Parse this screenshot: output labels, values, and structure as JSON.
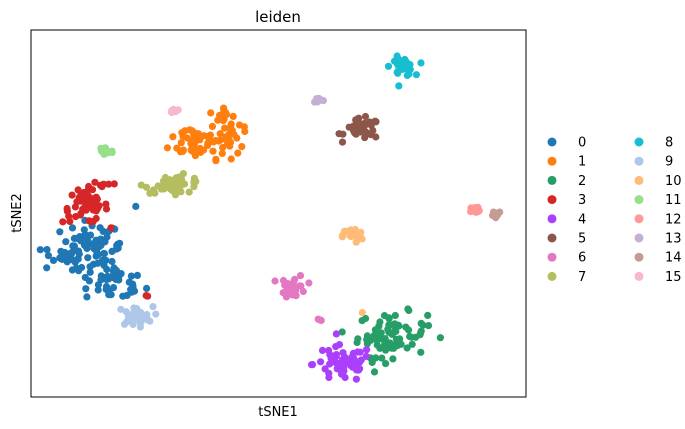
{
  "chart_data": {
    "type": "scatter",
    "title": "leiden",
    "xlabel": "tSNE1",
    "ylabel": "tSNE2",
    "xlim": [
      0,
      100
    ],
    "ylim": [
      0,
      100
    ],
    "grid": false,
    "ticks": false,
    "legend_position": "right",
    "legend_columns": 2,
    "series": [
      {
        "name": "0",
        "color": "#1f77b4",
        "clusters": [
          {
            "cx": 12,
            "cy": 40,
            "sx": 3.0,
            "sy": 4.0,
            "n": 70
          },
          {
            "cx": 17,
            "cy": 31,
            "sx": 3.0,
            "sy": 2.5,
            "n": 40
          },
          {
            "cx": 6,
            "cy": 38,
            "sx": 1.8,
            "sy": 2.0,
            "n": 15
          },
          {
            "cx": 17,
            "cy": 41,
            "sx": 0.6,
            "sy": 0.6,
            "n": 4
          },
          {
            "cx": 21,
            "cy": 52,
            "sx": 0.4,
            "sy": 0.4,
            "n": 1
          }
        ]
      },
      {
        "name": "1",
        "color": "#ff7f0e",
        "clusters": [
          {
            "cx": 33,
            "cy": 70,
            "sx": 2.5,
            "sy": 2.5,
            "n": 45
          },
          {
            "cx": 39,
            "cy": 69,
            "sx": 1.6,
            "sy": 2.0,
            "n": 20
          },
          {
            "cx": 39,
            "cy": 76,
            "sx": 1.5,
            "sy": 1.2,
            "n": 10
          },
          {
            "cx": 40.5,
            "cy": 73,
            "sx": 1.5,
            "sy": 1.6,
            "n": 10
          },
          {
            "cx": 39,
            "cy": 77.5,
            "sx": 0.6,
            "sy": 0.6,
            "n": 3
          }
        ]
      },
      {
        "name": "2",
        "color": "#279e68",
        "clusters": [
          {
            "cx": 73,
            "cy": 17,
            "sx": 3.5,
            "sy": 3.0,
            "n": 75
          },
          {
            "cx": 69,
            "cy": 10,
            "sx": 0.5,
            "sy": 0.5,
            "n": 2
          }
        ]
      },
      {
        "name": "3",
        "color": "#d62728",
        "clusters": [
          {
            "cx": 11,
            "cy": 52,
            "sx": 2.3,
            "sy": 2.3,
            "n": 50
          },
          {
            "cx": 15,
            "cy": 58,
            "sx": 1.5,
            "sy": 0.6,
            "n": 6
          },
          {
            "cx": 23.5,
            "cy": 27.5,
            "sx": 0.4,
            "sy": 0.4,
            "n": 2
          }
        ]
      },
      {
        "name": "4",
        "color": "#aa40fc",
        "clusters": [
          {
            "cx": 63,
            "cy": 9,
            "sx": 3.0,
            "sy": 2.5,
            "n": 60
          }
        ]
      },
      {
        "name": "5",
        "color": "#8c564b",
        "clusters": [
          {
            "cx": 67,
            "cy": 73,
            "sx": 1.8,
            "sy": 1.4,
            "n": 35
          }
        ]
      },
      {
        "name": "6",
        "color": "#e377c2",
        "clusters": [
          {
            "cx": 53,
            "cy": 30,
            "sx": 1.3,
            "sy": 1.6,
            "n": 28
          },
          {
            "cx": 58,
            "cy": 21,
            "sx": 0.5,
            "sy": 0.4,
            "n": 3
          }
        ]
      },
      {
        "name": "7",
        "color": "#b5bd61",
        "clusters": [
          {
            "cx": 29,
            "cy": 58,
            "sx": 3.0,
            "sy": 1.2,
            "n": 40
          }
        ]
      },
      {
        "name": "8",
        "color": "#17becf",
        "clusters": [
          {
            "cx": 75,
            "cy": 90,
            "sx": 1.2,
            "sy": 1.3,
            "n": 30
          }
        ]
      },
      {
        "name": "9",
        "color": "#aec7e8",
        "clusters": [
          {
            "cx": 21,
            "cy": 22,
            "sx": 1.8,
            "sy": 1.3,
            "n": 35
          }
        ]
      },
      {
        "name": "10",
        "color": "#ffbb78",
        "clusters": [
          {
            "cx": 65,
            "cy": 44,
            "sx": 1.0,
            "sy": 1.0,
            "n": 22
          },
          {
            "cx": 67,
            "cy": 23,
            "sx": 0.3,
            "sy": 0.3,
            "n": 1
          }
        ]
      },
      {
        "name": "11",
        "color": "#98df8a",
        "clusters": [
          {
            "cx": 15,
            "cy": 67,
            "sx": 0.8,
            "sy": 0.9,
            "n": 18
          }
        ]
      },
      {
        "name": "12",
        "color": "#ff9896",
        "clusters": [
          {
            "cx": 90,
            "cy": 51,
            "sx": 0.7,
            "sy": 0.5,
            "n": 14
          }
        ]
      },
      {
        "name": "13",
        "color": "#c5b0d5",
        "clusters": [
          {
            "cx": 58,
            "cy": 81,
            "sx": 0.5,
            "sy": 0.4,
            "n": 12
          }
        ]
      },
      {
        "name": "14",
        "color": "#c49c94",
        "clusters": [
          {
            "cx": 94,
            "cy": 50,
            "sx": 0.6,
            "sy": 0.4,
            "n": 12
          }
        ]
      },
      {
        "name": "15",
        "color": "#f7b6d2",
        "clusters": [
          {
            "cx": 29,
            "cy": 78,
            "sx": 0.5,
            "sy": 0.3,
            "n": 8
          }
        ]
      }
    ]
  }
}
